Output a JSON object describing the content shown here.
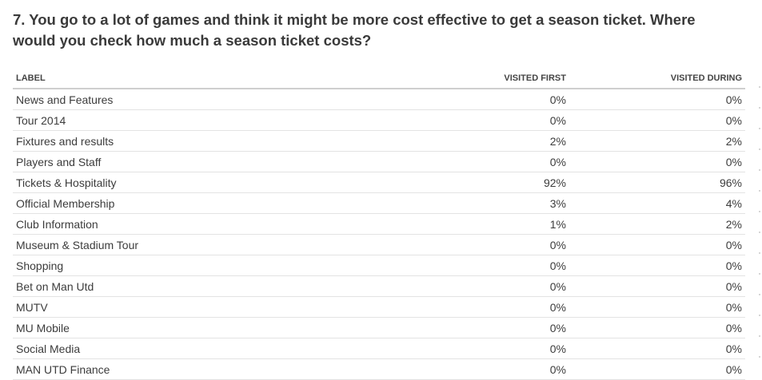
{
  "question": "7. You go to a lot of games and think it might be more cost effective to get a season ticket. Where would you check how much a season ticket costs?",
  "chart_data": {
    "type": "table",
    "columns": [
      "LABEL",
      "VISITED FIRST",
      "VISITED DURING"
    ],
    "rows": [
      {
        "label": "News and Features",
        "visited_first": "0%",
        "visited_during": "0%"
      },
      {
        "label": "Tour 2014",
        "visited_first": "0%",
        "visited_during": "0%"
      },
      {
        "label": "Fixtures and results",
        "visited_first": "2%",
        "visited_during": "2%"
      },
      {
        "label": "Players and Staff",
        "visited_first": "0%",
        "visited_during": "0%"
      },
      {
        "label": "Tickets & Hospitality",
        "visited_first": "92%",
        "visited_during": "96%"
      },
      {
        "label": "Official Membership",
        "visited_first": "3%",
        "visited_during": "4%"
      },
      {
        "label": "Club Information",
        "visited_first": "1%",
        "visited_during": "2%"
      },
      {
        "label": "Museum & Stadium Tour",
        "visited_first": "0%",
        "visited_during": "0%"
      },
      {
        "label": "Shopping",
        "visited_first": "0%",
        "visited_during": "0%"
      },
      {
        "label": "Bet on Man Utd",
        "visited_first": "0%",
        "visited_during": "0%"
      },
      {
        "label": "MUTV",
        "visited_first": "0%",
        "visited_during": "0%"
      },
      {
        "label": "MU Mobile",
        "visited_first": "0%",
        "visited_during": "0%"
      },
      {
        "label": "Social Media",
        "visited_first": "0%",
        "visited_during": "0%"
      },
      {
        "label": "MAN UTD Finance",
        "visited_first": "0%",
        "visited_during": "0%"
      }
    ]
  }
}
